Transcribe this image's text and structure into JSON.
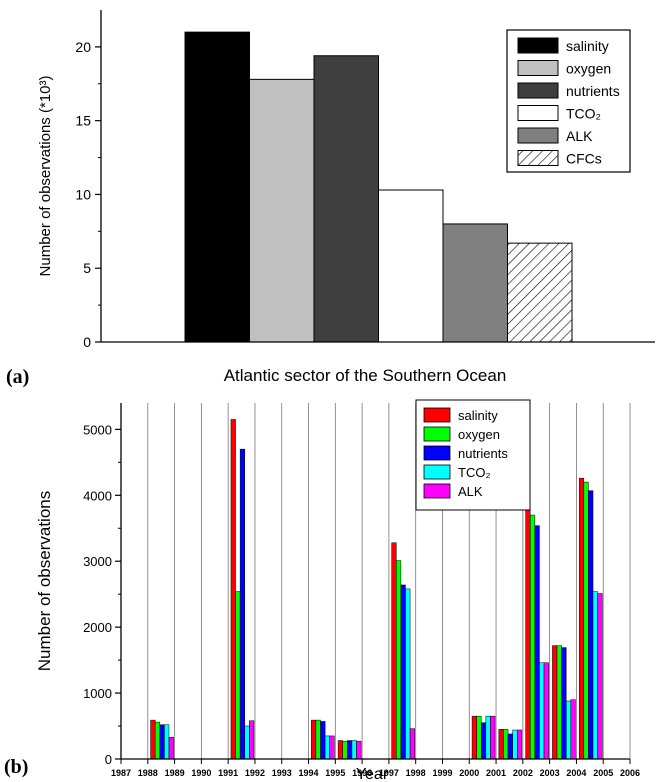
{
  "panel_a_label": "(a)",
  "panel_b_label": "(b)",
  "colors": {
    "a": {
      "salinity": "#000000",
      "oxygen": "#c0c0c0",
      "nutrients": "#3f3f3f",
      "TCO2": "#ffffff",
      "ALK": "#808080",
      "CFCs": "hatch"
    },
    "b": {
      "salinity": "#ff0000",
      "oxygen": "#00ff00",
      "nutrients": "#0000ff",
      "TCO2": "#00ffff",
      "ALK": "#ff00ff"
    }
  },
  "chart_data": [
    {
      "type": "bar",
      "xlabel": "Atlantic sector of the Southern Ocean",
      "ylabel": "Number of observations (*10³)",
      "ylim": [
        0,
        22.5
      ],
      "yticks": [
        "0",
        "5",
        "10",
        "15",
        "20"
      ],
      "categories": [
        "salinity",
        "oxygen",
        "nutrients",
        "TCO₂",
        "ALK",
        "CFCs"
      ],
      "values": [
        21.0,
        17.8,
        19.4,
        10.3,
        8.0,
        6.7
      ],
      "legend": [
        "salinity",
        "oxygen",
        "nutrients",
        "TCO₂",
        "ALK",
        "CFCs"
      ],
      "legend_position": "top-right"
    },
    {
      "type": "bar",
      "xlabel": "Year",
      "ylabel": "Number of observations",
      "ylim": [
        0,
        5400
      ],
      "yticks": [
        "0",
        "1000",
        "2000",
        "3000",
        "4000",
        "5000"
      ],
      "grid": true,
      "legend_position": "top-right",
      "x": [
        "1987",
        "1988",
        "1989",
        "1990",
        "1991",
        "1992",
        "1993",
        "1994",
        "1995",
        "1996",
        "1997",
        "1998",
        "1999",
        "2000",
        "2001",
        "2002",
        "2003",
        "2004",
        "2005",
        "2006"
      ],
      "series": [
        {
          "name": "salinity",
          "values": [
            0,
            0,
            590,
            0,
            0,
            5150,
            0,
            0,
            590,
            280,
            0,
            3280,
            0,
            0,
            650,
            450,
            3900,
            1720,
            4260,
            0
          ]
        },
        {
          "name": "oxygen",
          "values": [
            0,
            0,
            560,
            0,
            0,
            2540,
            0,
            0,
            590,
            270,
            0,
            3010,
            0,
            0,
            650,
            450,
            3700,
            1720,
            4200,
            0
          ]
        },
        {
          "name": "nutrients",
          "values": [
            0,
            0,
            520,
            0,
            0,
            4700,
            0,
            0,
            570,
            280,
            0,
            2640,
            0,
            0,
            550,
            380,
            3540,
            1690,
            4070,
            0
          ]
        },
        {
          "name": "TCO₂",
          "values": [
            0,
            0,
            520,
            0,
            0,
            500,
            0,
            0,
            350,
            280,
            0,
            2580,
            0,
            0,
            650,
            440,
            1460,
            880,
            2540,
            0
          ]
        },
        {
          "name": "ALK",
          "values": [
            0,
            0,
            330,
            0,
            0,
            580,
            0,
            0,
            350,
            270,
            0,
            460,
            0,
            0,
            650,
            440,
            1460,
            900,
            2510,
            0
          ]
        }
      ]
    }
  ]
}
